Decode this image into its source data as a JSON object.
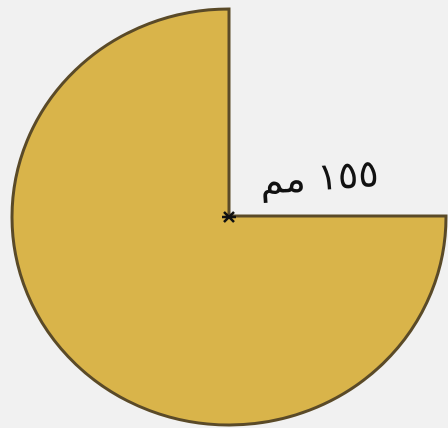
{
  "diagram": {
    "label": "١٥٥ مم"
  }
}
